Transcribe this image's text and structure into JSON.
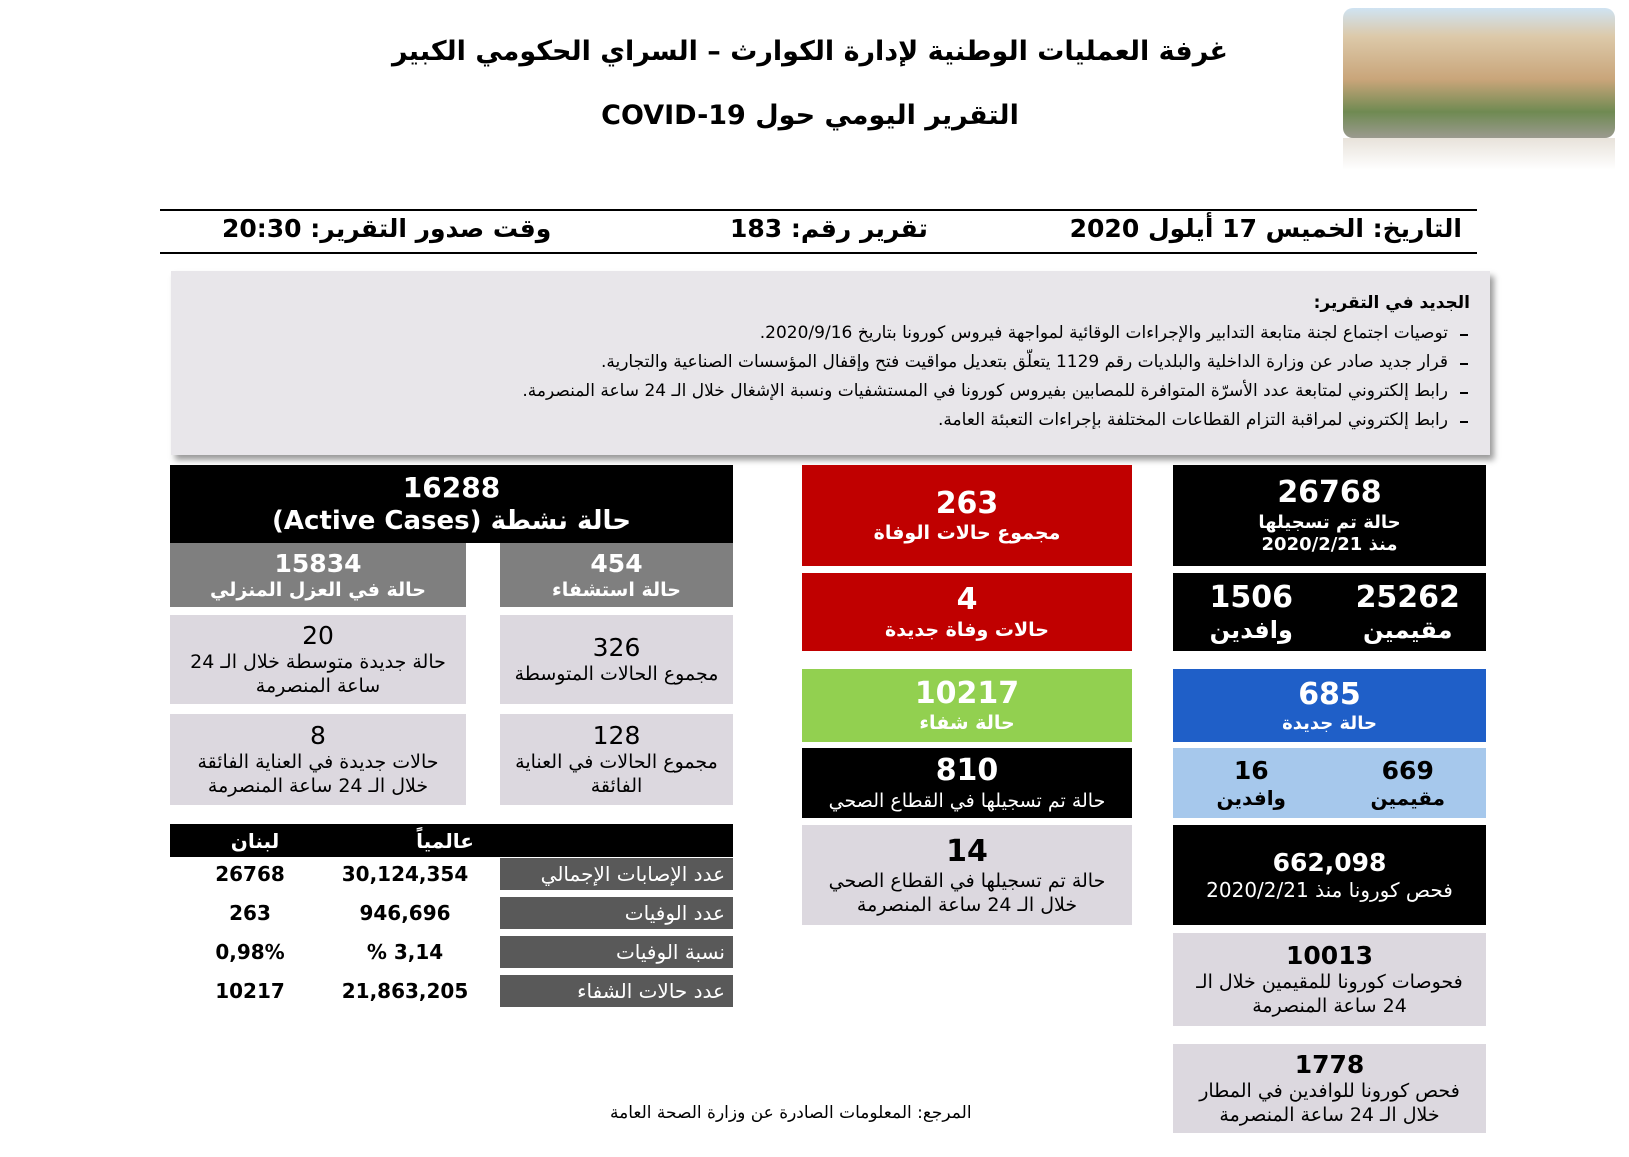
{
  "header": {
    "title": "غرفة العمليات الوطنية لإدارة الكوارث – السراي الحكومي الكبير",
    "subtitle": "التقرير اليومي حول COVID-19"
  },
  "info": {
    "date": "التاريخ: الخميس 17 أيلول 2020",
    "report_number": "تقرير رقم: 183",
    "time": "وقت صدور التقرير: 20:30"
  },
  "news": {
    "heading": "الجديد في التقرير:",
    "items": [
      "توصيات اجتماع لجنة متابعة التدابير والإجراءات الوقائية لمواجهة فيروس كورونا بتاريخ 2020/9/16.",
      "قرار جديد صادر عن وزارة الداخلية والبلديات رقم 1129 يتعلّق بتعديل مواقيت فتح وإقفال المؤسسات الصناعية والتجارية.",
      "رابط إلكتروني لمتابعة عدد الأسرّة المتوافرة للمصابين بفيروس كورونا في المستشفيات ونسبة الإشغال خلال الـ 24 ساعة المنصرمة.",
      "رابط إلكتروني لمراقبة التزام القطاعات المختلفة بإجراءات التعبئة العامة."
    ]
  },
  "active": {
    "value": "16288",
    "label": "حالة نشطة (Active Cases)"
  },
  "hospitalized": {
    "value": "454",
    "label": "حالة استشفاء"
  },
  "home_isolation": {
    "value": "15834",
    "label": "حالة في العزل المنزلي"
  },
  "moderate_total": {
    "value": "326",
    "label": "مجموع الحالات المتوسطة"
  },
  "moderate_new": {
    "value": "20",
    "label": "حالة جديدة متوسطة خلال الـ 24 ساعة المنصرمة"
  },
  "icu_total": {
    "value": "128",
    "label": "مجموع الحالات في العناية الفائقة"
  },
  "icu_new": {
    "value": "8",
    "label": "حالات جديدة في العناية الفائقة خلال الـ 24 ساعة المنصرمة"
  },
  "deaths_total": {
    "value": "263",
    "label": "مجموع حالات الوفاة"
  },
  "deaths_new": {
    "value": "4",
    "label": "حالات وفاة جديدة"
  },
  "recovered": {
    "value": "10217",
    "label": "حالة شفاء"
  },
  "health_sector": {
    "value": "810",
    "label": "حالة تم تسجيلها في القطاع الصحي"
  },
  "health_sector_new": {
    "value": "14",
    "label": "حالة تم تسجيلها في القطاع الصحي خلال الـ 24 ساعة المنصرمة"
  },
  "total_cases": {
    "value": "26768",
    "label": "حالة تم تسجيلها",
    "note": "منذ 2020/2/21"
  },
  "total_split": {
    "residents": {
      "value": "25262",
      "label": "مقيمين"
    },
    "arrivals": {
      "value": "1506",
      "label": "وافدين"
    }
  },
  "new_cases": {
    "value": "685",
    "label": "حالة جديدة"
  },
  "new_split": {
    "residents": {
      "value": "669",
      "label": "مقيمين"
    },
    "arrivals": {
      "value": "16",
      "label": "وافدين"
    }
  },
  "tests_total": {
    "value": "662,098",
    "label": "فحص كورونا منذ 2020/2/21"
  },
  "tests_residents": {
    "value": "10013",
    "label": "فحوصات كورونا للمقيمين خلال الـ 24 ساعة المنصرمة"
  },
  "tests_airport": {
    "value": "1778",
    "label": "فحص كورونا للوافدين في المطار خلال الـ 24 ساعة المنصرمة"
  },
  "comparison": {
    "headers": [
      "عالمياً",
      "لبنان"
    ],
    "rows": [
      {
        "label": "عدد الإصابات الإجمالي",
        "world": "30,124,354",
        "lebanon": "26768"
      },
      {
        "label": "عدد الوفيات",
        "world": "946,696",
        "lebanon": "263"
      },
      {
        "label": "نسبة الوفيات",
        "world": "3,14 %",
        "lebanon": "0,98%"
      },
      {
        "label": "عدد حالات الشفاء",
        "world": "21,863,205",
        "lebanon": "10217"
      }
    ]
  },
  "footer": {
    "source": "المرجع: المعلومات الصادرة عن وزارة الصحة العامة"
  }
}
